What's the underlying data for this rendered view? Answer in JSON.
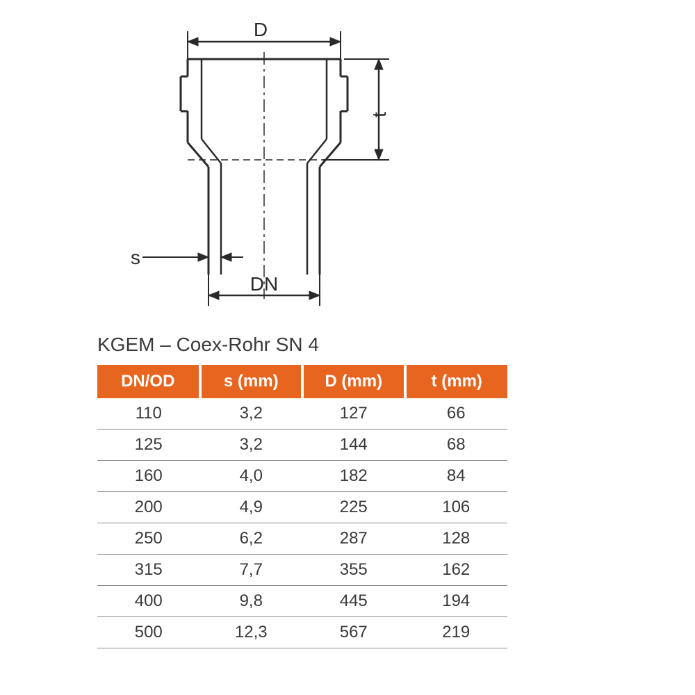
{
  "diagram": {
    "labels": {
      "D": "D",
      "t": "t",
      "s": "s",
      "DN": "DN"
    },
    "colors": {
      "stroke": "#2a2a2a",
      "background": "#ffffff"
    },
    "line_width_main": 3,
    "line_width_thin": 1.5,
    "font_size_labels": 28
  },
  "title": "KGEM – Coex-Rohr SN 4",
  "table": {
    "header_bg": "#e8651f",
    "header_fg": "#ffffff",
    "row_border": "#888888",
    "cell_fontsize": 24,
    "columns": [
      "DN/OD",
      "s (mm)",
      "D (mm)",
      "t (mm)"
    ],
    "rows": [
      [
        "110",
        "3,2",
        "127",
        "66"
      ],
      [
        "125",
        "3,2",
        "144",
        "68"
      ],
      [
        "160",
        "4,0",
        "182",
        "84"
      ],
      [
        "200",
        "4,9",
        "225",
        "106"
      ],
      [
        "250",
        "6,2",
        "287",
        "128"
      ],
      [
        "315",
        "7,7",
        "355",
        "162"
      ],
      [
        "400",
        "9,8",
        "445",
        "194"
      ],
      [
        "500",
        "12,3",
        "567",
        "219"
      ]
    ]
  }
}
